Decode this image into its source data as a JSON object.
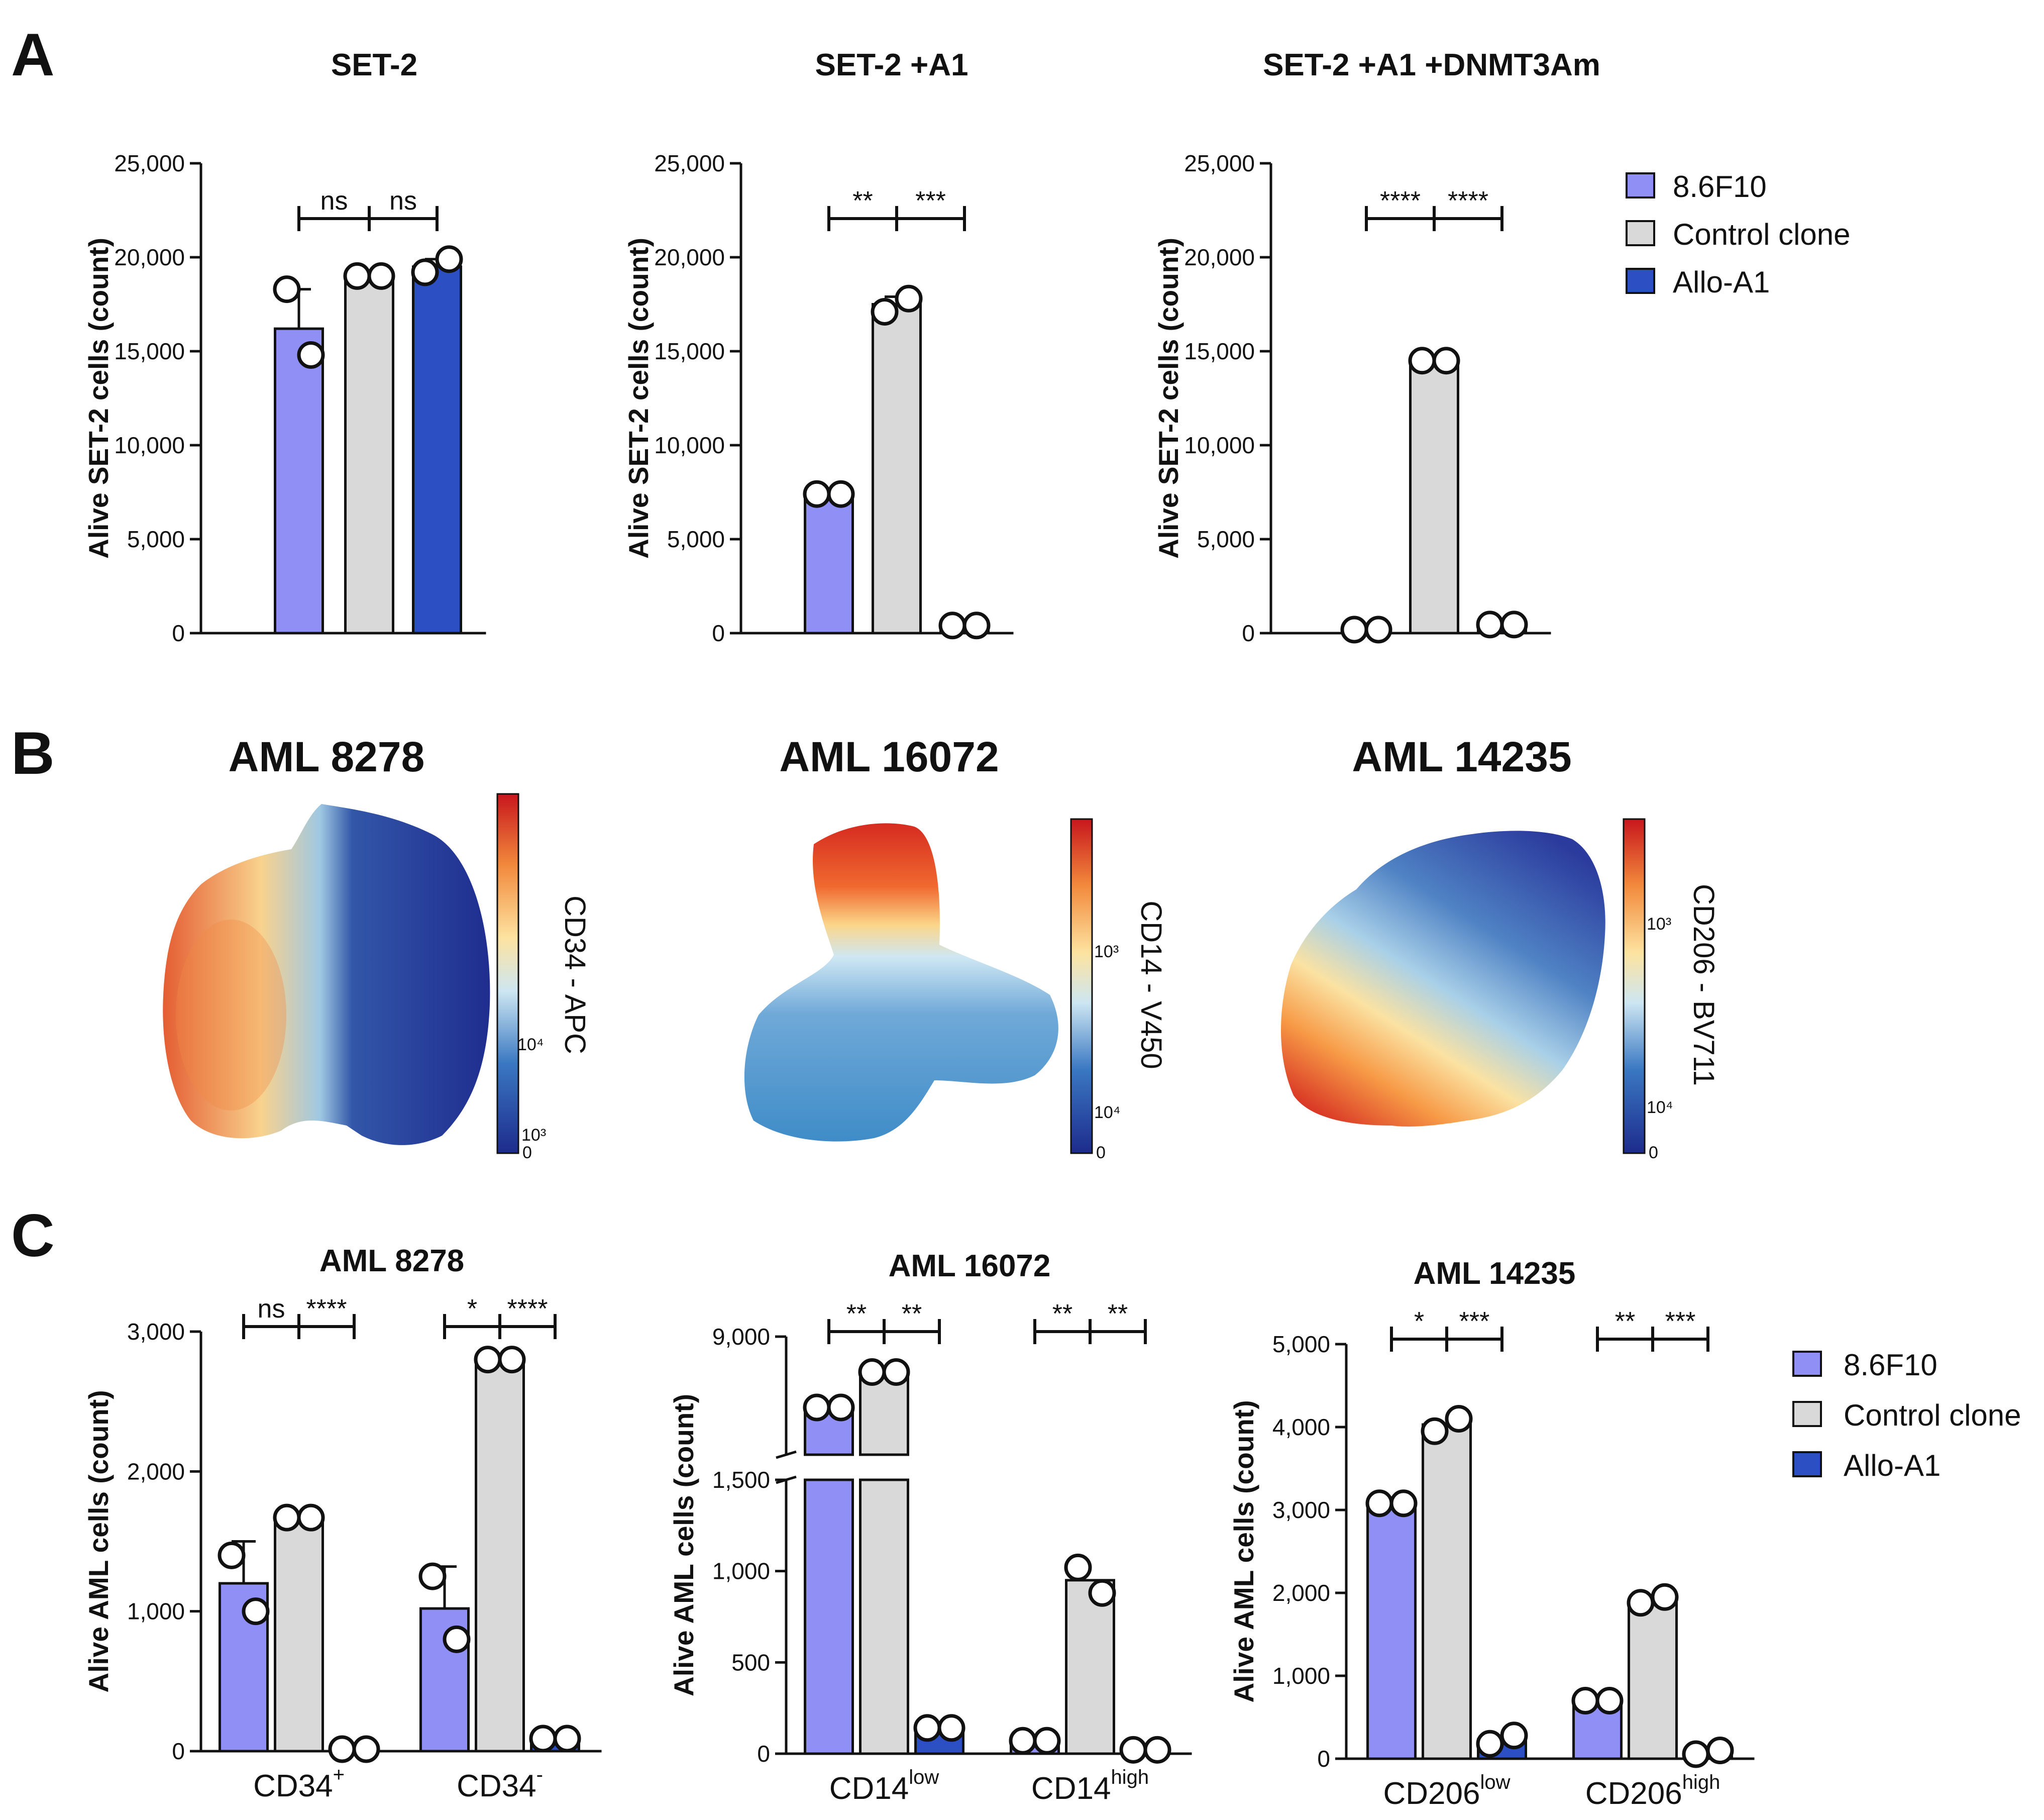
{
  "colors": {
    "8.6F10": "#8F8FF5",
    "Control clone": "#D9D9D9",
    "Allo-A1": "#2D4FC4",
    "axis": "#111111"
  },
  "panel_letters": [
    "A",
    "B",
    "C"
  ],
  "legend_entries": [
    "8.6F10",
    "Control clone",
    "Allo-A1"
  ],
  "chart_data": [
    {
      "type": "bar",
      "panel": "A",
      "title": "SET-2",
      "ylabel": "Alive SET-2 cells (count)",
      "ylim": [
        0,
        25000
      ],
      "yticks": [
        "0",
        "5,000",
        "10,000",
        "15,000",
        "20,000",
        "25,000"
      ],
      "categories": [
        "8.6F10",
        "Control clone",
        "Allo-A1"
      ],
      "values": [
        16200,
        18900,
        19500
      ],
      "errors": [
        2100,
        0,
        400
      ],
      "points": [
        [
          18300,
          14800
        ],
        [
          19000,
          19000
        ],
        [
          19200,
          19900
        ]
      ],
      "significance": [
        "ns",
        "ns"
      ]
    },
    {
      "type": "bar",
      "panel": "A",
      "title": "SET-2 +A1",
      "ylabel": "Alive SET-2 cells (count)",
      "ylim": [
        0,
        25000
      ],
      "yticks": [
        "0",
        "5,000",
        "10,000",
        "15,000",
        "20,000",
        "25,000"
      ],
      "categories": [
        "8.6F10",
        "Control clone",
        "Allo-A1"
      ],
      "values": [
        7400,
        17500,
        300
      ],
      "errors": [
        0,
        400,
        0
      ],
      "points": [
        [
          7400,
          7400
        ],
        [
          17100,
          17800
        ],
        [
          300,
          300
        ]
      ],
      "significance": [
        "**",
        "***"
      ]
    },
    {
      "type": "bar",
      "panel": "A",
      "title": "SET-2 +A1 +DNMT3Am",
      "ylabel": "Alive SET-2 cells (count)",
      "ylim": [
        0,
        25000
      ],
      "yticks": [
        "0",
        "5,000",
        "10,000",
        "15,000",
        "20,000",
        "25,000"
      ],
      "categories": [
        "8.6F10",
        "Control clone",
        "Allo-A1"
      ],
      "values": [
        80,
        14500,
        350
      ],
      "errors": [
        0,
        0,
        0
      ],
      "points": [
        [
          80,
          80
        ],
        [
          14500,
          14500
        ],
        [
          350,
          350
        ]
      ],
      "significance": [
        "****",
        "****"
      ]
    },
    {
      "type": "bar",
      "panel": "C",
      "title": "AML 8278",
      "ylabel": "Alive AML cells (count)",
      "ylim": [
        0,
        3000
      ],
      "yticks": [
        "0",
        "1,000",
        "2,000",
        "3,000"
      ],
      "groups": [
        {
          "label": "CD34",
          "sup": "+"
        },
        {
          "label": "CD34",
          "sup": "-"
        }
      ],
      "series": [
        {
          "name": "8.6F10",
          "values": [
            1200,
            1020
          ],
          "errors": [
            300,
            300
          ],
          "points": [
            [
              1400,
              1000
            ],
            [
              1250,
              800
            ]
          ]
        },
        {
          "name": "Control clone",
          "values": [
            1670,
            2800
          ],
          "errors": [
            0,
            0
          ],
          "points": [
            [
              1670,
              1670
            ],
            [
              2800,
              2800
            ]
          ]
        },
        {
          "name": "Allo-A1",
          "values": [
            0,
            90
          ],
          "errors": [
            0,
            0
          ],
          "points": [
            [
              0,
              0
            ],
            [
              90,
              90
            ]
          ]
        }
      ],
      "significance": [
        [
          "ns",
          "****"
        ],
        [
          "*",
          "****"
        ]
      ]
    },
    {
      "type": "bar",
      "panel": "C",
      "title": "AML 16072",
      "ylabel": "Alive AML cells (count)",
      "ylim": [
        0,
        9000
      ],
      "yticks": [
        "0",
        "500",
        "1,000",
        "1,500",
        "9,000"
      ],
      "axis_break": {
        "lower_max": 1500,
        "upper_min": 6000,
        "upper_max": 9000
      },
      "groups": [
        {
          "label": "CD14",
          "sup": "low"
        },
        {
          "label": "CD14",
          "sup": "high"
        }
      ],
      "series": [
        {
          "name": "8.6F10",
          "values": [
            7200,
            60
          ],
          "errors": [
            0,
            0
          ],
          "points": [
            [
              7200,
              7200
            ],
            [
              60,
              60
            ]
          ]
        },
        {
          "name": "Control clone",
          "values": [
            8100,
            950
          ],
          "errors": [
            0,
            0
          ],
          "points": [
            [
              8100,
              8100
            ],
            [
              1020,
              880
            ]
          ]
        },
        {
          "name": "Allo-A1",
          "values": [
            130,
            10
          ],
          "errors": [
            0,
            0
          ],
          "points": [
            [
              130,
              130
            ],
            [
              10,
              10
            ]
          ]
        }
      ],
      "significance": [
        [
          "**",
          "**"
        ],
        [
          "**",
          "**"
        ]
      ]
    },
    {
      "type": "bar",
      "panel": "C",
      "title": "AML 14235",
      "ylabel": "Alive AML cells (count)",
      "ylim": [
        0,
        5000
      ],
      "yticks": [
        "0",
        "1,000",
        "2,000",
        "3,000",
        "4,000",
        "5,000"
      ],
      "groups": [
        {
          "label": "CD206",
          "sup": "low"
        },
        {
          "label": "CD206",
          "sup": "high"
        }
      ],
      "series": [
        {
          "name": "8.6F10",
          "values": [
            3080,
            700
          ],
          "errors": [
            0,
            0
          ],
          "points": [
            [
              3080,
              3080
            ],
            [
              700,
              700
            ]
          ]
        },
        {
          "name": "Control clone",
          "values": [
            4030,
            1900
          ],
          "errors": [
            0,
            0
          ],
          "points": [
            [
              3950,
              4100
            ],
            [
              1880,
              1950
            ]
          ]
        },
        {
          "name": "Allo-A1",
          "values": [
            230,
            60
          ],
          "errors": [
            0,
            0
          ],
          "points": [
            [
              180,
              280
            ],
            [
              30,
              100
            ]
          ]
        }
      ],
      "significance": [
        [
          "*",
          "***"
        ],
        [
          "**",
          "***"
        ]
      ]
    }
  ],
  "umaps": [
    {
      "title": "AML 8278",
      "colorbar_label": "CD34 - APC",
      "colorbar_ticks": [
        "10⁴",
        "10³",
        "0"
      ]
    },
    {
      "title": "AML 16072",
      "colorbar_label": "CD14 - V450",
      "colorbar_ticks": [
        "10³",
        "10⁴",
        "0"
      ]
    },
    {
      "title": "AML 14235",
      "colorbar_label": "CD206 - BV711",
      "colorbar_ticks": [
        "10³",
        "10⁴",
        "0"
      ]
    }
  ]
}
